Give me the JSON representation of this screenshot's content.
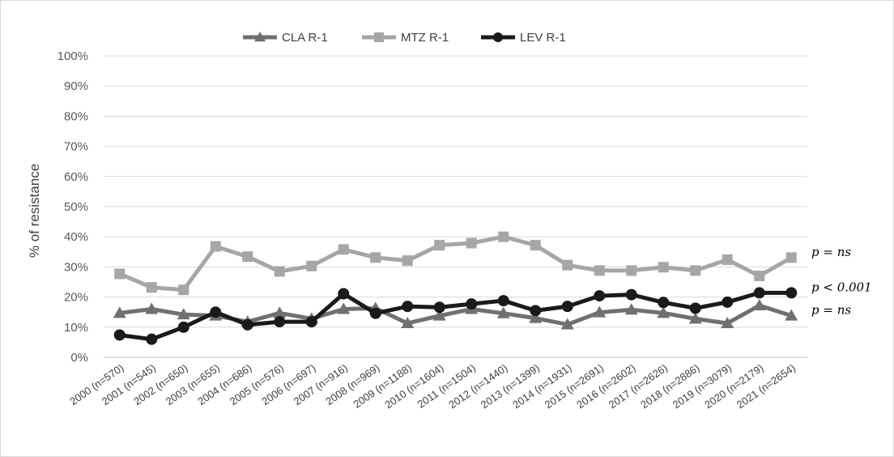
{
  "chart_data": {
    "type": "line",
    "ylabel": "% of resistance",
    "xlabel": "",
    "ylim": [
      0,
      100
    ],
    "yticks": [
      "0%",
      "10%",
      "20%",
      "30%",
      "40%",
      "50%",
      "60%",
      "70%",
      "80%",
      "90%",
      "100%"
    ],
    "grid": "horizontal",
    "legend_position": "top-center",
    "categories": [
      "2000 (n=570)",
      "2001 (n=545)",
      "2002 (n=650)",
      "2003 (n=655)",
      "2004 (n=686)",
      "2005 (n=576)",
      "2006 (n=697)",
      "2007 (n=916)",
      "2008 (n=969)",
      "2009 (n=1188)",
      "2010 (n=1604)",
      "2011 (n=1504)",
      "2012 (n=1440)",
      "2013 (n=1399)",
      "2014 (n=1931)",
      "2015 (n=2691)",
      "2016 (n=2602)",
      "2017 (n=2626)",
      "2018 (n=2886)",
      "2019 (n=3079)",
      "2020 (n=2179)",
      "2021 (n=2654)"
    ],
    "series": [
      {
        "name": "CLA R-1",
        "marker": "triangle",
        "color": "#707070",
        "values": [
          14.7,
          16.0,
          14.2,
          13.8,
          11.8,
          14.7,
          12.8,
          16.0,
          16.3,
          11.3,
          13.8,
          16.0,
          14.6,
          13.0,
          10.9,
          14.9,
          15.8,
          14.7,
          12.8,
          11.3,
          17.2,
          13.8
        ],
        "annotation": "p = ns"
      },
      {
        "name": "MTZ R-1",
        "marker": "square",
        "color": "#a6a6a6",
        "values": [
          27.7,
          23.2,
          22.4,
          36.8,
          33.4,
          28.5,
          30.3,
          35.8,
          33.1,
          32.1,
          37.2,
          37.9,
          40.0,
          37.2,
          30.6,
          28.8,
          28.8,
          29.9,
          28.8,
          32.4,
          27.0,
          33.1
        ],
        "annotation": "p = ns"
      },
      {
        "name": "LEV R-1",
        "marker": "circle",
        "color": "#1a1a1a",
        "values": [
          7.4,
          6.0,
          10.0,
          15.0,
          10.8,
          11.8,
          11.8,
          21.1,
          14.6,
          16.9,
          16.6,
          17.7,
          18.8,
          15.5,
          16.9,
          20.4,
          20.8,
          18.2,
          16.3,
          18.3,
          21.4,
          21.4
        ],
        "annotation": "p < 0.001"
      }
    ]
  }
}
